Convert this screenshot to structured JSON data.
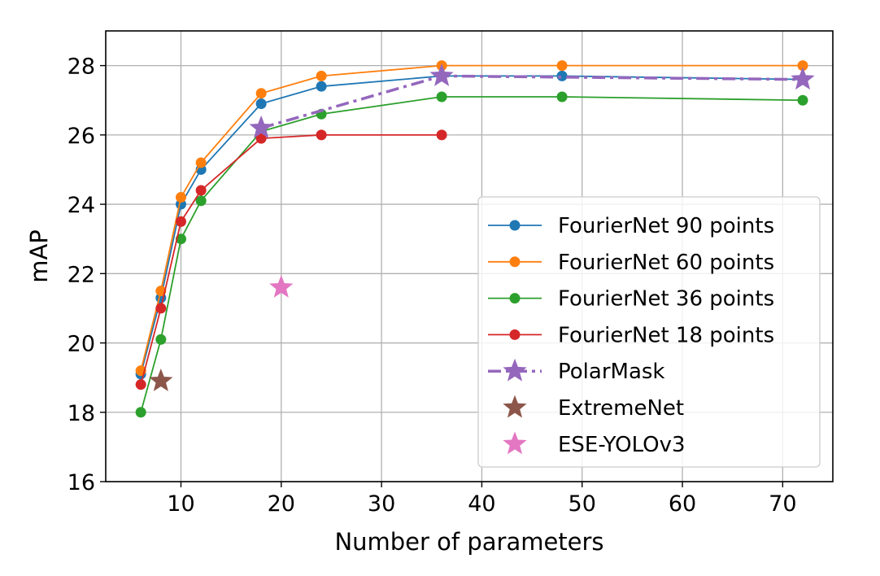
{
  "chart_data": {
    "type": "line",
    "title": "",
    "xlabel": "Number of parameters",
    "ylabel": "mAP",
    "xlim": [
      2.5,
      75
    ],
    "ylim": [
      16,
      29
    ],
    "xticks": [
      10,
      20,
      30,
      40,
      50,
      60,
      70
    ],
    "yticks": [
      16,
      18,
      20,
      22,
      24,
      26,
      28
    ],
    "grid": true,
    "legend_position": "lower-right",
    "series": [
      {
        "name": "FourierNet 90 points",
        "color": "#1f77b4",
        "marker": "circle",
        "line": "solid",
        "x": [
          6,
          8,
          10,
          12,
          18,
          24,
          36,
          48,
          72
        ],
        "y": [
          19.1,
          21.3,
          24.0,
          25.0,
          26.9,
          27.4,
          27.7,
          27.7,
          27.6
        ]
      },
      {
        "name": "FourierNet 60 points",
        "color": "#ff7f0e",
        "marker": "circle",
        "line": "solid",
        "x": [
          6,
          8,
          10,
          12,
          18,
          24,
          36,
          48,
          72
        ],
        "y": [
          19.2,
          21.5,
          24.2,
          25.2,
          27.2,
          27.7,
          28.0,
          28.0,
          28.0
        ]
      },
      {
        "name": "FourierNet 36 points",
        "color": "#2ca02c",
        "marker": "circle",
        "line": "solid",
        "x": [
          6,
          8,
          10,
          12,
          18,
          24,
          36,
          48,
          72
        ],
        "y": [
          18.0,
          20.1,
          23.0,
          24.1,
          26.1,
          26.6,
          27.1,
          27.1,
          27.0
        ]
      },
      {
        "name": "FourierNet 18 points",
        "color": "#d62728",
        "marker": "circle",
        "line": "solid",
        "x": [
          6,
          8,
          10,
          12,
          18,
          24,
          36
        ],
        "y": [
          18.8,
          21.0,
          23.5,
          24.4,
          25.9,
          26.0,
          26.0
        ]
      },
      {
        "name": "PolarMask",
        "color": "#9467bd",
        "marker": "star",
        "line": "dashdot",
        "x": [
          18,
          36,
          72
        ],
        "y": [
          26.2,
          27.7,
          27.6
        ]
      },
      {
        "name": "ExtremeNet",
        "color": "#8c564b",
        "marker": "star",
        "line": "none",
        "x": [
          8
        ],
        "y": [
          18.9
        ]
      },
      {
        "name": "ESE-YOLOv3",
        "color": "#e377c2",
        "marker": "star",
        "line": "none",
        "x": [
          20
        ],
        "y": [
          21.6
        ]
      }
    ]
  }
}
